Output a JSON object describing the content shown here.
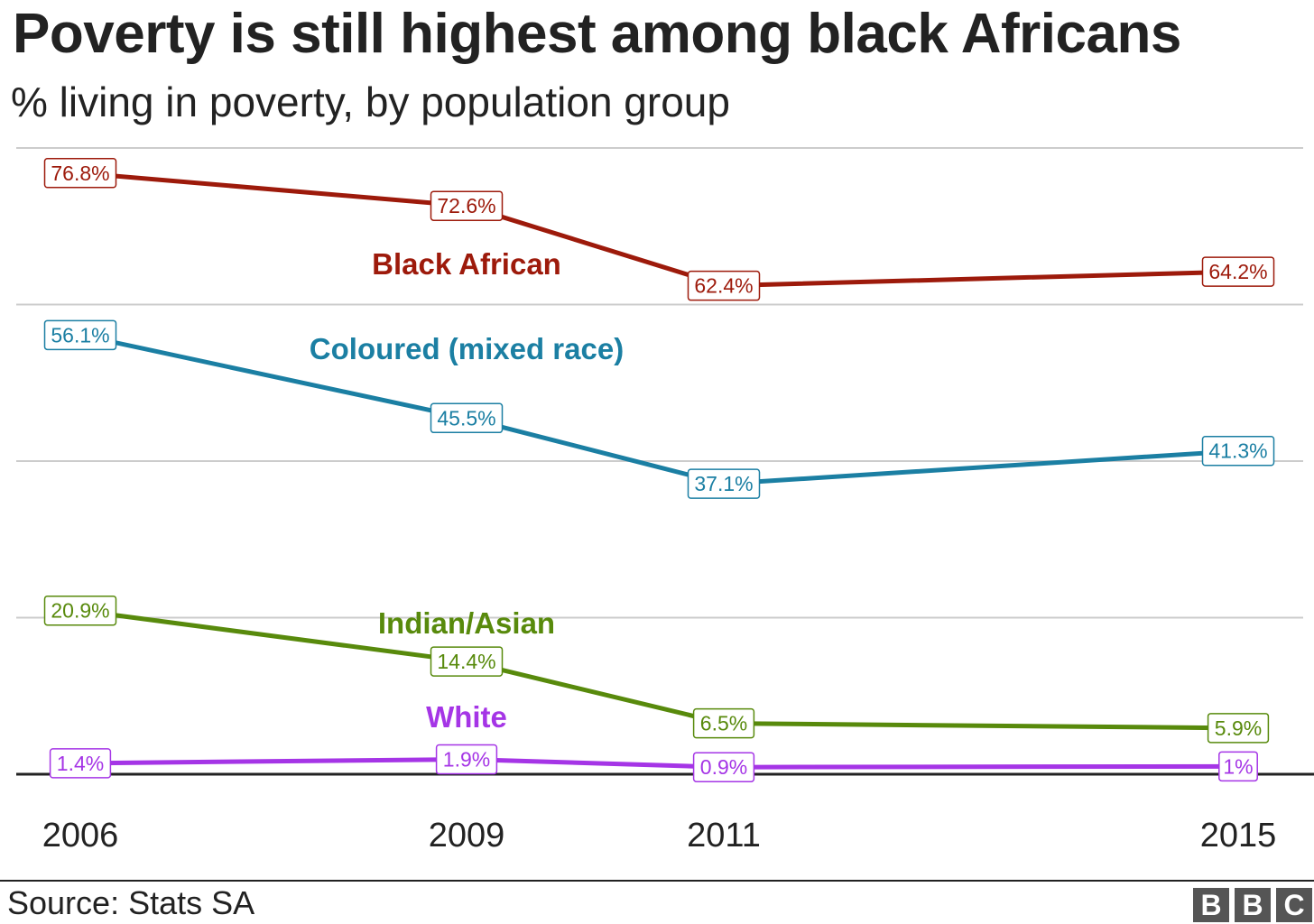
{
  "title": "Poverty is still highest among black Africans",
  "subtitle": "% living in poverty, by population group",
  "source": "Source: Stats SA",
  "logo": {
    "letters": [
      "B",
      "B",
      "C"
    ],
    "color": "#555555"
  },
  "chart_data": {
    "type": "line",
    "title": "Poverty is still highest among black Africans",
    "subtitle": "% living in poverty, by population group",
    "xlabel": "",
    "ylabel": "",
    "x": [
      2006,
      2009,
      2011,
      2015
    ],
    "x_tick_labels": [
      "2006",
      "2009",
      "2011",
      "2015"
    ],
    "ylim": [
      0,
      80
    ],
    "gridlines": [
      20,
      40,
      60,
      80
    ],
    "legend": "inline labels",
    "series": [
      {
        "name": "Black African",
        "color": "#9d1a0b",
        "values": [
          76.8,
          72.6,
          62.4,
          64.2
        ],
        "labels": [
          "76.8%",
          "72.6%",
          "62.4%",
          "64.2%"
        ]
      },
      {
        "name": "Coloured (mixed race)",
        "color": "#1b7fa3",
        "values": [
          56.1,
          45.5,
          37.1,
          41.3
        ],
        "labels": [
          "56.1%",
          "45.5%",
          "37.1%",
          "41.3%"
        ]
      },
      {
        "name": "Indian/Asian",
        "color": "#588a0c",
        "values": [
          20.9,
          14.4,
          6.5,
          5.9
        ],
        "labels": [
          "20.9%",
          "14.4%",
          "6.5%",
          "5.9%"
        ]
      },
      {
        "name": "White",
        "color": "#a535e6",
        "values": [
          1.4,
          1.9,
          0.9,
          1
        ],
        "labels": [
          "1.4%",
          "1.9%",
          "0.9%",
          "1%"
        ]
      }
    ]
  }
}
